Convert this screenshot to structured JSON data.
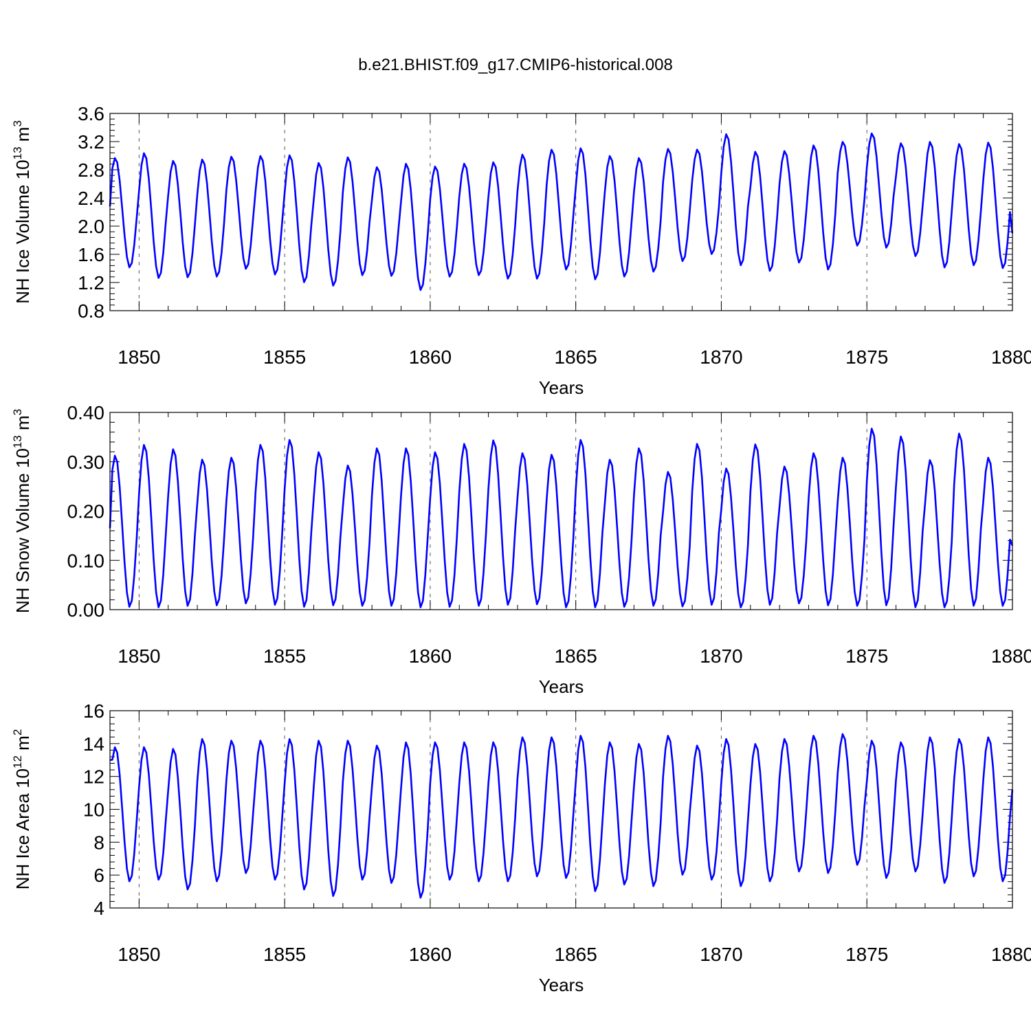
{
  "title": "b.e21.BHIST.f09_g17.CMIP6-historical.008",
  "chart_data": [
    {
      "type": "line",
      "name": "ice-volume",
      "ylabel": "NH Ice Volume 10",
      "ylabel_exp": "13",
      "ylabel_unit": " m",
      "ylabel_unit_exp": "3",
      "xlabel": "Years",
      "xlim": [
        1849.0,
        1880.0
      ],
      "xticks": [
        1850,
        1855,
        1860,
        1865,
        1870,
        1875,
        1880
      ],
      "xtick_labels": [
        "1850",
        "1855",
        "1860",
        "1865",
        "1870",
        "1875",
        "1880"
      ],
      "ylim": [
        0.8,
        3.6
      ],
      "yticks": [
        0.8,
        1.2,
        1.6,
        2.0,
        2.4,
        2.8,
        3.2,
        3.6
      ],
      "ytick_labels": [
        "0.8",
        "1.2",
        "1.6",
        "2.0",
        "2.4",
        "2.8",
        "3.2",
        "3.6"
      ],
      "grid": "dashed vertical at major x ticks",
      "color": "#0000ff",
      "start_year": 1849.0,
      "step_years": 0.08333,
      "start_value": 2.28,
      "end_value": 1.9,
      "annual_max": [
        2.97,
        3.04,
        2.93,
        2.95,
        2.99,
        3.0,
        3.01,
        2.9,
        2.98,
        2.84,
        2.89,
        2.85,
        2.89,
        2.91,
        3.02,
        3.09,
        3.11,
        3.0,
        2.97,
        3.1,
        3.09,
        3.31,
        3.06,
        3.07,
        3.15,
        3.2,
        3.32,
        3.18,
        3.2,
        3.17,
        3.19
      ],
      "annual_min": [
        1.41,
        1.26,
        1.27,
        1.28,
        1.39,
        1.31,
        1.2,
        1.15,
        1.3,
        1.29,
        1.09,
        1.28,
        1.3,
        1.25,
        1.25,
        1.38,
        1.24,
        1.28,
        1.35,
        1.5,
        1.6,
        1.44,
        1.36,
        1.48,
        1.38,
        1.72,
        1.69,
        1.57,
        1.41,
        1.44,
        1.4
      ]
    },
    {
      "type": "line",
      "name": "snow-volume",
      "ylabel": "NH Snow Volume 10",
      "ylabel_exp": "13",
      "ylabel_unit": " m",
      "ylabel_unit_exp": "3",
      "xlabel": "Years",
      "xlim": [
        1849.0,
        1880.0
      ],
      "xticks": [
        1850,
        1855,
        1860,
        1865,
        1870,
        1875,
        1880
      ],
      "xtick_labels": [
        "1850",
        "1855",
        "1860",
        "1865",
        "1870",
        "1875",
        "1880"
      ],
      "ylim": [
        0.0,
        0.4
      ],
      "yticks": [
        0.0,
        0.1,
        0.2,
        0.3,
        0.4
      ],
      "ytick_labels": [
        "0.00",
        "0.10",
        "0.20",
        "0.30",
        "0.40"
      ],
      "grid": "dashed vertical at major x ticks",
      "color": "#0000ff",
      "start_year": 1849.0,
      "step_years": 0.08333,
      "start_value": 0.165,
      "end_value": 0.13,
      "annual_max": [
        0.313,
        0.335,
        0.326,
        0.305,
        0.309,
        0.335,
        0.345,
        0.32,
        0.293,
        0.328,
        0.328,
        0.32,
        0.337,
        0.344,
        0.318,
        0.315,
        0.345,
        0.305,
        0.328,
        0.28,
        0.337,
        0.287,
        0.336,
        0.291,
        0.318,
        0.309,
        0.368,
        0.352,
        0.304,
        0.358,
        0.309
      ],
      "annual_min": [
        0.005,
        0.004,
        0.007,
        0.008,
        0.012,
        0.009,
        0.005,
        0.008,
        0.007,
        0.007,
        0.004,
        0.005,
        0.007,
        0.009,
        0.01,
        0.004,
        0.004,
        0.005,
        0.007,
        0.006,
        0.009,
        0.004,
        0.009,
        0.012,
        0.008,
        0.007,
        0.008,
        0.004,
        0.004,
        0.007,
        0.007
      ]
    },
    {
      "type": "line",
      "name": "ice-area",
      "ylabel": "NH Ice Area 10",
      "ylabel_exp": "12",
      "ylabel_unit": " m",
      "ylabel_unit_exp": "2",
      "xlabel": "Years",
      "xlim": [
        1849.0,
        1880.0
      ],
      "xticks": [
        1850,
        1855,
        1860,
        1865,
        1870,
        1875,
        1880
      ],
      "xtick_labels": [
        "1850",
        "1855",
        "1860",
        "1865",
        "1870",
        "1875",
        "1880"
      ],
      "ylim": [
        4,
        16
      ],
      "yticks": [
        4,
        6,
        8,
        10,
        12,
        14,
        16
      ],
      "ytick_labels": [
        "4",
        "6",
        "8",
        "10",
        "12",
        "14",
        "16"
      ],
      "grid": "dashed vertical at major x ticks",
      "color": "#0000ff",
      "start_year": 1849.0,
      "step_years": 0.08333,
      "start_value": 13.0,
      "end_value": 11.2,
      "annual_max": [
        13.8,
        13.8,
        13.7,
        14.3,
        14.2,
        14.2,
        14.3,
        14.2,
        14.2,
        13.9,
        14.1,
        14.1,
        14.1,
        14.1,
        14.4,
        14.4,
        14.5,
        14.1,
        14.0,
        14.5,
        13.9,
        14.3,
        14.0,
        14.3,
        14.5,
        14.6,
        14.2,
        14.1,
        14.4,
        14.3,
        14.4
      ],
      "annual_min": [
        5.6,
        5.7,
        5.1,
        5.6,
        6.1,
        5.7,
        5.1,
        4.7,
        5.7,
        5.5,
        4.6,
        5.7,
        5.6,
        5.6,
        5.9,
        5.8,
        5.0,
        5.4,
        5.3,
        6.0,
        5.7,
        5.3,
        5.6,
        6.2,
        6.1,
        6.6,
        5.8,
        6.2,
        5.5,
        5.9,
        5.6
      ]
    }
  ]
}
